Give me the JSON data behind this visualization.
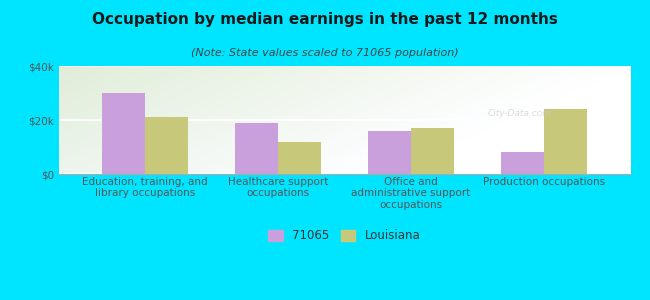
{
  "title": "Occupation by median earnings in the past 12 months",
  "subtitle": "(Note: State values scaled to 71065 population)",
  "categories": [
    "Education, training, and\nlibrary occupations",
    "Healthcare support\noccupations",
    "Office and\nadministrative support\noccupations",
    "Production occupations"
  ],
  "values_71065": [
    30000,
    19000,
    16000,
    8000
  ],
  "values_louisiana": [
    21000,
    12000,
    17000,
    24000
  ],
  "color_71065": "#c9a0dc",
  "color_louisiana": "#c8c87a",
  "background_outer": "#00e5ff",
  "ylim": [
    0,
    40000
  ],
  "ytick_labels": [
    "$0",
    "$20k",
    "$40k"
  ],
  "legend_labels": [
    "71065",
    "Louisiana"
  ],
  "bar_width": 0.32,
  "title_fontsize": 11,
  "subtitle_fontsize": 8,
  "tick_fontsize": 7.5,
  "legend_fontsize": 8.5
}
